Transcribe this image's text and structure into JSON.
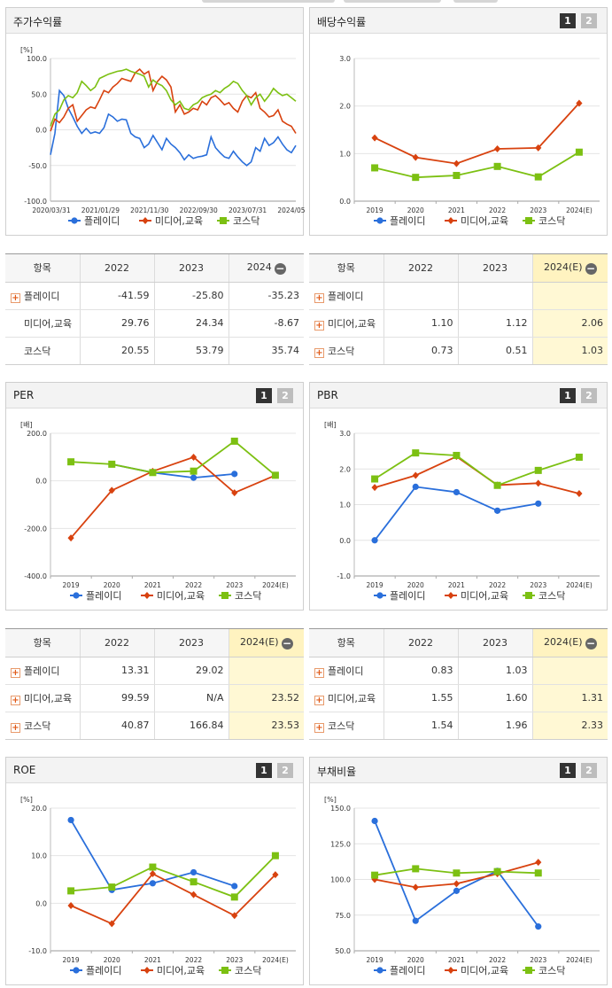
{
  "colors": {
    "s0": "#2a6fdb",
    "s1": "#d8420f",
    "s2": "#7cc012"
  },
  "panels": {
    "stock": {
      "title": "주가수익률"
    },
    "div": {
      "title": "배당수익률",
      "btn1": "1",
      "btn2": "2"
    },
    "per": {
      "title": "PER",
      "btn1": "1",
      "btn2": "2"
    },
    "pbr": {
      "title": "PBR",
      "btn1": "1",
      "btn2": "2"
    },
    "roe": {
      "title": "ROE",
      "btn1": "1",
      "btn2": "2"
    },
    "debt": {
      "title": "부채비율",
      "btn1": "1",
      "btn2": "2"
    }
  },
  "chart_data": [
    {
      "id": "stock",
      "type": "line",
      "unit": "[%]",
      "ylim": [
        -100,
        100
      ],
      "yticks": [
        "100.0",
        "50.0",
        "0.0",
        "-50.0",
        "-100.0"
      ],
      "ytick_values": [
        100,
        50,
        0,
        -50,
        -100
      ],
      "xtick_labels": [
        "2020/03/31",
        "2021/01/29",
        "2021/11/30",
        "2022/09/30",
        "2023/07/31",
        "2024/05/31"
      ],
      "series": [
        {
          "name": "플레이디",
          "values": [
            -35,
            -5,
            55,
            48,
            30,
            18,
            5,
            -5,
            2,
            -5,
            -3,
            -5,
            3,
            22,
            18,
            12,
            15,
            14,
            -5,
            -10,
            -12,
            -25,
            -20,
            -8,
            -18,
            -28,
            -12,
            -20,
            -25,
            -32,
            -42,
            -35,
            -40,
            -38,
            -37,
            -35,
            -10,
            -25,
            -32,
            -38,
            -40,
            -30,
            -38,
            -45,
            -50,
            -45,
            -25,
            -30,
            -12,
            -22,
            -18,
            -10,
            -20,
            -28,
            -32,
            -22
          ]
        },
        {
          "name": "미디어,교육",
          "values": [
            -2,
            15,
            10,
            18,
            30,
            35,
            12,
            20,
            28,
            32,
            30,
            42,
            55,
            52,
            60,
            65,
            72,
            70,
            68,
            80,
            85,
            78,
            82,
            55,
            68,
            75,
            70,
            60,
            25,
            35,
            22,
            25,
            30,
            28,
            40,
            35,
            45,
            48,
            42,
            35,
            38,
            30,
            25,
            40,
            48,
            45,
            52,
            30,
            25,
            18,
            20,
            28,
            12,
            8,
            5,
            -5
          ]
        },
        {
          "name": "코스닥",
          "values": [
            5,
            22,
            28,
            42,
            48,
            45,
            52,
            68,
            62,
            55,
            60,
            72,
            75,
            78,
            80,
            82,
            83,
            85,
            82,
            80,
            78,
            75,
            60,
            70,
            65,
            62,
            55,
            42,
            35,
            40,
            30,
            28,
            35,
            38,
            45,
            48,
            50,
            55,
            52,
            58,
            62,
            68,
            65,
            55,
            48,
            35,
            45,
            50,
            40,
            48,
            58,
            52,
            48,
            50,
            45,
            40
          ]
        }
      ]
    },
    {
      "id": "div",
      "type": "line",
      "unit": "",
      "ylim": [
        0,
        3
      ],
      "yticks": [
        "3.0",
        "2.0",
        "1.0",
        "0.0"
      ],
      "ytick_values": [
        3,
        2,
        1,
        0
      ],
      "categories": [
        "2019",
        "2020",
        "2021",
        "2022",
        "2023",
        "2024(E)"
      ],
      "series": [
        {
          "name": "플레이디",
          "values": [
            null,
            null,
            null,
            null,
            null,
            null
          ]
        },
        {
          "name": "미디어,교육",
          "values": [
            1.33,
            0.92,
            0.79,
            1.1,
            1.12,
            2.06
          ]
        },
        {
          "name": "코스닥",
          "values": [
            0.7,
            0.5,
            0.54,
            0.73,
            0.51,
            1.03
          ]
        }
      ]
    },
    {
      "id": "per",
      "type": "line",
      "unit": "[배]",
      "ylim": [
        -400,
        200
      ],
      "yticks": [
        "200.0",
        "0.0",
        "-200.0",
        "-400.0"
      ],
      "ytick_values": [
        200,
        0,
        -200,
        -400
      ],
      "categories": [
        "2019",
        "2020",
        "2021",
        "2022",
        "2023",
        "2024(E)"
      ],
      "series": [
        {
          "name": "플레이디",
          "values": [
            null,
            70,
            35,
            13.31,
            29.02,
            null
          ]
        },
        {
          "name": "미디어,교육",
          "values": [
            -240,
            -40,
            40,
            99.59,
            -50,
            23.52
          ]
        },
        {
          "name": "코스닥",
          "values": [
            80,
            70,
            35,
            40.87,
            166.84,
            23.53
          ]
        }
      ]
    },
    {
      "id": "pbr",
      "type": "line",
      "unit": "[배]",
      "ylim": [
        -1,
        3
      ],
      "yticks": [
        "3.0",
        "2.0",
        "1.0",
        "0.0",
        "-1.0"
      ],
      "ytick_values": [
        3,
        2,
        1,
        0,
        -1
      ],
      "categories": [
        "2019",
        "2020",
        "2021",
        "2022",
        "2023",
        "2024(E)"
      ],
      "series": [
        {
          "name": "플레이디",
          "values": [
            0.0,
            1.5,
            1.35,
            0.83,
            1.03,
            null
          ]
        },
        {
          "name": "미디어,교육",
          "values": [
            1.48,
            1.82,
            2.35,
            1.55,
            1.6,
            1.31
          ]
        },
        {
          "name": "코스닥",
          "values": [
            1.72,
            2.45,
            2.38,
            1.54,
            1.96,
            2.33
          ]
        }
      ]
    },
    {
      "id": "roe",
      "type": "line",
      "unit": "[%]",
      "ylim": [
        -10,
        20
      ],
      "yticks": [
        "20.0",
        "10.0",
        "0.0",
        "-10.0"
      ],
      "ytick_values": [
        20,
        10,
        0,
        -10
      ],
      "categories": [
        "2019",
        "2020",
        "2021",
        "2022",
        "2023",
        "2024(E)"
      ],
      "series": [
        {
          "name": "플레이디",
          "values": [
            17.5,
            2.8,
            4.2,
            6.5,
            3.6,
            null
          ]
        },
        {
          "name": "미디어,교육",
          "values": [
            -0.5,
            -4.3,
            6.2,
            1.8,
            -2.6,
            6.0
          ]
        },
        {
          "name": "코스닥",
          "values": [
            2.6,
            3.4,
            7.6,
            4.5,
            1.3,
            10.0
          ]
        }
      ]
    },
    {
      "id": "debt",
      "type": "line",
      "unit": "[%]",
      "ylim": [
        50,
        150
      ],
      "yticks": [
        "150.0",
        "125.0",
        "100.0",
        "75.0",
        "50.0"
      ],
      "ytick_values": [
        150,
        125,
        100,
        75,
        50
      ],
      "categories": [
        "2019",
        "2020",
        "2021",
        "2022",
        "2023",
        "2024(E)"
      ],
      "series": [
        {
          "name": "플레이디",
          "values": [
            141,
            71,
            92,
            106,
            67,
            null
          ]
        },
        {
          "name": "미디어,교육",
          "values": [
            100,
            94.5,
            97,
            104,
            112,
            null
          ]
        },
        {
          "name": "코스닥",
          "values": [
            103,
            107.5,
            104.5,
            105.5,
            104.5,
            null
          ]
        }
      ]
    }
  ],
  "tables": {
    "stock": {
      "headers": [
        "항목",
        "2022",
        "2023",
        "2024"
      ],
      "rows": [
        {
          "name": "플레이디",
          "plus": true,
          "vals": [
            "-41.59",
            "-25.80",
            "-35.23"
          ]
        },
        {
          "name": "미디어,교육",
          "plus": false,
          "vals": [
            "29.76",
            "24.34",
            "-8.67"
          ]
        },
        {
          "name": "코스닥",
          "plus": false,
          "vals": [
            "20.55",
            "53.79",
            "35.74"
          ]
        }
      ]
    },
    "div": {
      "headers": [
        "항목",
        "2022",
        "2023",
        "2024(E)"
      ],
      "rows": [
        {
          "name": "플레이디",
          "plus": true,
          "vals": [
            "",
            "",
            ""
          ]
        },
        {
          "name": "미디어,교육",
          "plus": true,
          "vals": [
            "1.10",
            "1.12",
            "2.06"
          ]
        },
        {
          "name": "코스닥",
          "plus": true,
          "vals": [
            "0.73",
            "0.51",
            "1.03"
          ]
        }
      ]
    },
    "per": {
      "headers": [
        "항목",
        "2022",
        "2023",
        "2024(E)"
      ],
      "rows": [
        {
          "name": "플레이디",
          "plus": true,
          "vals": [
            "13.31",
            "29.02",
            ""
          ]
        },
        {
          "name": "미디어,교육",
          "plus": true,
          "vals": [
            "99.59",
            "N/A",
            "23.52"
          ]
        },
        {
          "name": "코스닥",
          "plus": true,
          "vals": [
            "40.87",
            "166.84",
            "23.53"
          ]
        }
      ]
    },
    "pbr": {
      "headers": [
        "항목",
        "2022",
        "2023",
        "2024(E)"
      ],
      "rows": [
        {
          "name": "플레이디",
          "plus": true,
          "vals": [
            "0.83",
            "1.03",
            ""
          ]
        },
        {
          "name": "미디어,교육",
          "plus": true,
          "vals": [
            "1.55",
            "1.60",
            "1.31"
          ]
        },
        {
          "name": "코스닥",
          "plus": true,
          "vals": [
            "1.54",
            "1.96",
            "2.33"
          ]
        }
      ]
    }
  }
}
